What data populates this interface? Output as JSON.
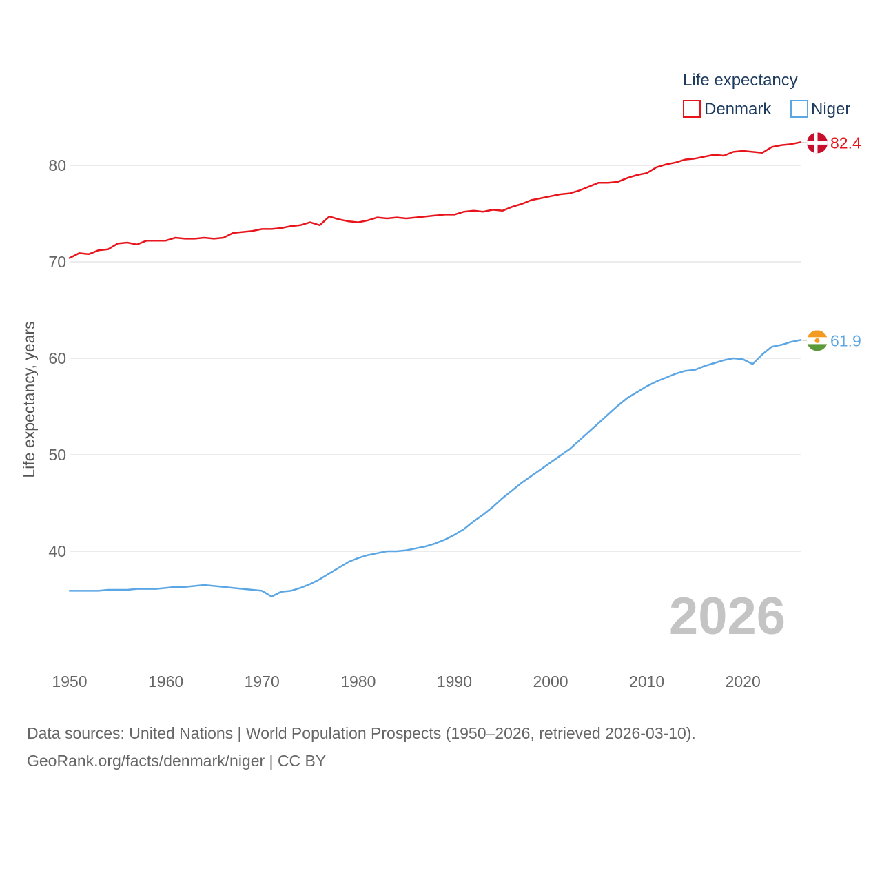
{
  "chart_data": {
    "type": "line",
    "legend_title": "Life expectancy",
    "ylabel": "Life expectancy, years",
    "xlabel": "",
    "xlim": [
      1950,
      2026
    ],
    "ylim": [
      32,
      87
    ],
    "x_ticks": [
      1950,
      1960,
      1970,
      1980,
      1990,
      2000,
      2010,
      2020
    ],
    "y_ticks": [
      40,
      50,
      60,
      70,
      80
    ],
    "current_year": "2026",
    "series": [
      {
        "name": "Denmark",
        "color": "#e8141b",
        "end_label": "82.4",
        "flag": "denmark-flag",
        "x": [
          1950,
          1951,
          1952,
          1953,
          1954,
          1955,
          1956,
          1957,
          1958,
          1959,
          1960,
          1961,
          1962,
          1963,
          1964,
          1965,
          1966,
          1967,
          1968,
          1969,
          1970,
          1971,
          1972,
          1973,
          1974,
          1975,
          1976,
          1977,
          1978,
          1979,
          1980,
          1981,
          1982,
          1983,
          1984,
          1985,
          1986,
          1987,
          1988,
          1989,
          1990,
          1991,
          1992,
          1993,
          1994,
          1995,
          1996,
          1997,
          1998,
          1999,
          2000,
          2001,
          2002,
          2003,
          2004,
          2005,
          2006,
          2007,
          2008,
          2009,
          2010,
          2011,
          2012,
          2013,
          2014,
          2015,
          2016,
          2017,
          2018,
          2019,
          2020,
          2021,
          2022,
          2023,
          2024,
          2025,
          2026
        ],
        "values": [
          70.4,
          70.9,
          70.8,
          71.2,
          71.3,
          71.9,
          72.0,
          71.8,
          72.2,
          72.2,
          72.2,
          72.5,
          72.4,
          72.4,
          72.5,
          72.4,
          72.5,
          73.0,
          73.1,
          73.2,
          73.4,
          73.4,
          73.5,
          73.7,
          73.8,
          74.1,
          73.8,
          74.7,
          74.4,
          74.2,
          74.1,
          74.3,
          74.6,
          74.5,
          74.6,
          74.5,
          74.6,
          74.7,
          74.8,
          74.9,
          74.9,
          75.2,
          75.3,
          75.2,
          75.4,
          75.3,
          75.7,
          76.0,
          76.4,
          76.6,
          76.8,
          77.0,
          77.1,
          77.4,
          77.8,
          78.2,
          78.2,
          78.3,
          78.7,
          79.0,
          79.2,
          79.8,
          80.1,
          80.3,
          80.6,
          80.7,
          80.9,
          81.1,
          81.0,
          81.4,
          81.5,
          81.4,
          81.3,
          81.9,
          82.1,
          82.2,
          82.4
        ]
      },
      {
        "name": "Niger",
        "color": "#5ba6e5",
        "end_label": "61.9",
        "flag": "niger-flag",
        "x": [
          1950,
          1951,
          1952,
          1953,
          1954,
          1955,
          1956,
          1957,
          1958,
          1959,
          1960,
          1961,
          1962,
          1963,
          1964,
          1965,
          1966,
          1967,
          1968,
          1969,
          1970,
          1971,
          1972,
          1973,
          1974,
          1975,
          1976,
          1977,
          1978,
          1979,
          1980,
          1981,
          1982,
          1983,
          1984,
          1985,
          1986,
          1987,
          1988,
          1989,
          1990,
          1991,
          1992,
          1993,
          1994,
          1995,
          1996,
          1997,
          1998,
          1999,
          2000,
          2001,
          2002,
          2003,
          2004,
          2005,
          2006,
          2007,
          2008,
          2009,
          2010,
          2011,
          2012,
          2013,
          2014,
          2015,
          2016,
          2017,
          2018,
          2019,
          2020,
          2021,
          2022,
          2023,
          2024,
          2025,
          2026
        ],
        "values": [
          35.9,
          35.9,
          35.9,
          35.9,
          36.0,
          36.0,
          36.0,
          36.1,
          36.1,
          36.1,
          36.2,
          36.3,
          36.3,
          36.4,
          36.5,
          36.4,
          36.3,
          36.2,
          36.1,
          36.0,
          35.9,
          35.3,
          35.8,
          35.9,
          36.2,
          36.6,
          37.1,
          37.7,
          38.3,
          38.9,
          39.3,
          39.6,
          39.8,
          40.0,
          40.0,
          40.1,
          40.3,
          40.5,
          40.8,
          41.2,
          41.7,
          42.3,
          43.1,
          43.8,
          44.6,
          45.5,
          46.3,
          47.1,
          47.8,
          48.5,
          49.2,
          49.9,
          50.6,
          51.5,
          52.4,
          53.3,
          54.2,
          55.1,
          55.9,
          56.5,
          57.1,
          57.6,
          58.0,
          58.4,
          58.7,
          58.8,
          59.2,
          59.5,
          59.8,
          60.0,
          59.9,
          59.4,
          60.4,
          61.2,
          61.4,
          61.7,
          61.9
        ]
      }
    ]
  },
  "footer": {
    "sources": "Data sources: United Nations | World Population Prospects (1950–2026, retrieved 2026-03-10).",
    "credit": "GeoRank.org/facts/denmark/niger | CC BY"
  }
}
